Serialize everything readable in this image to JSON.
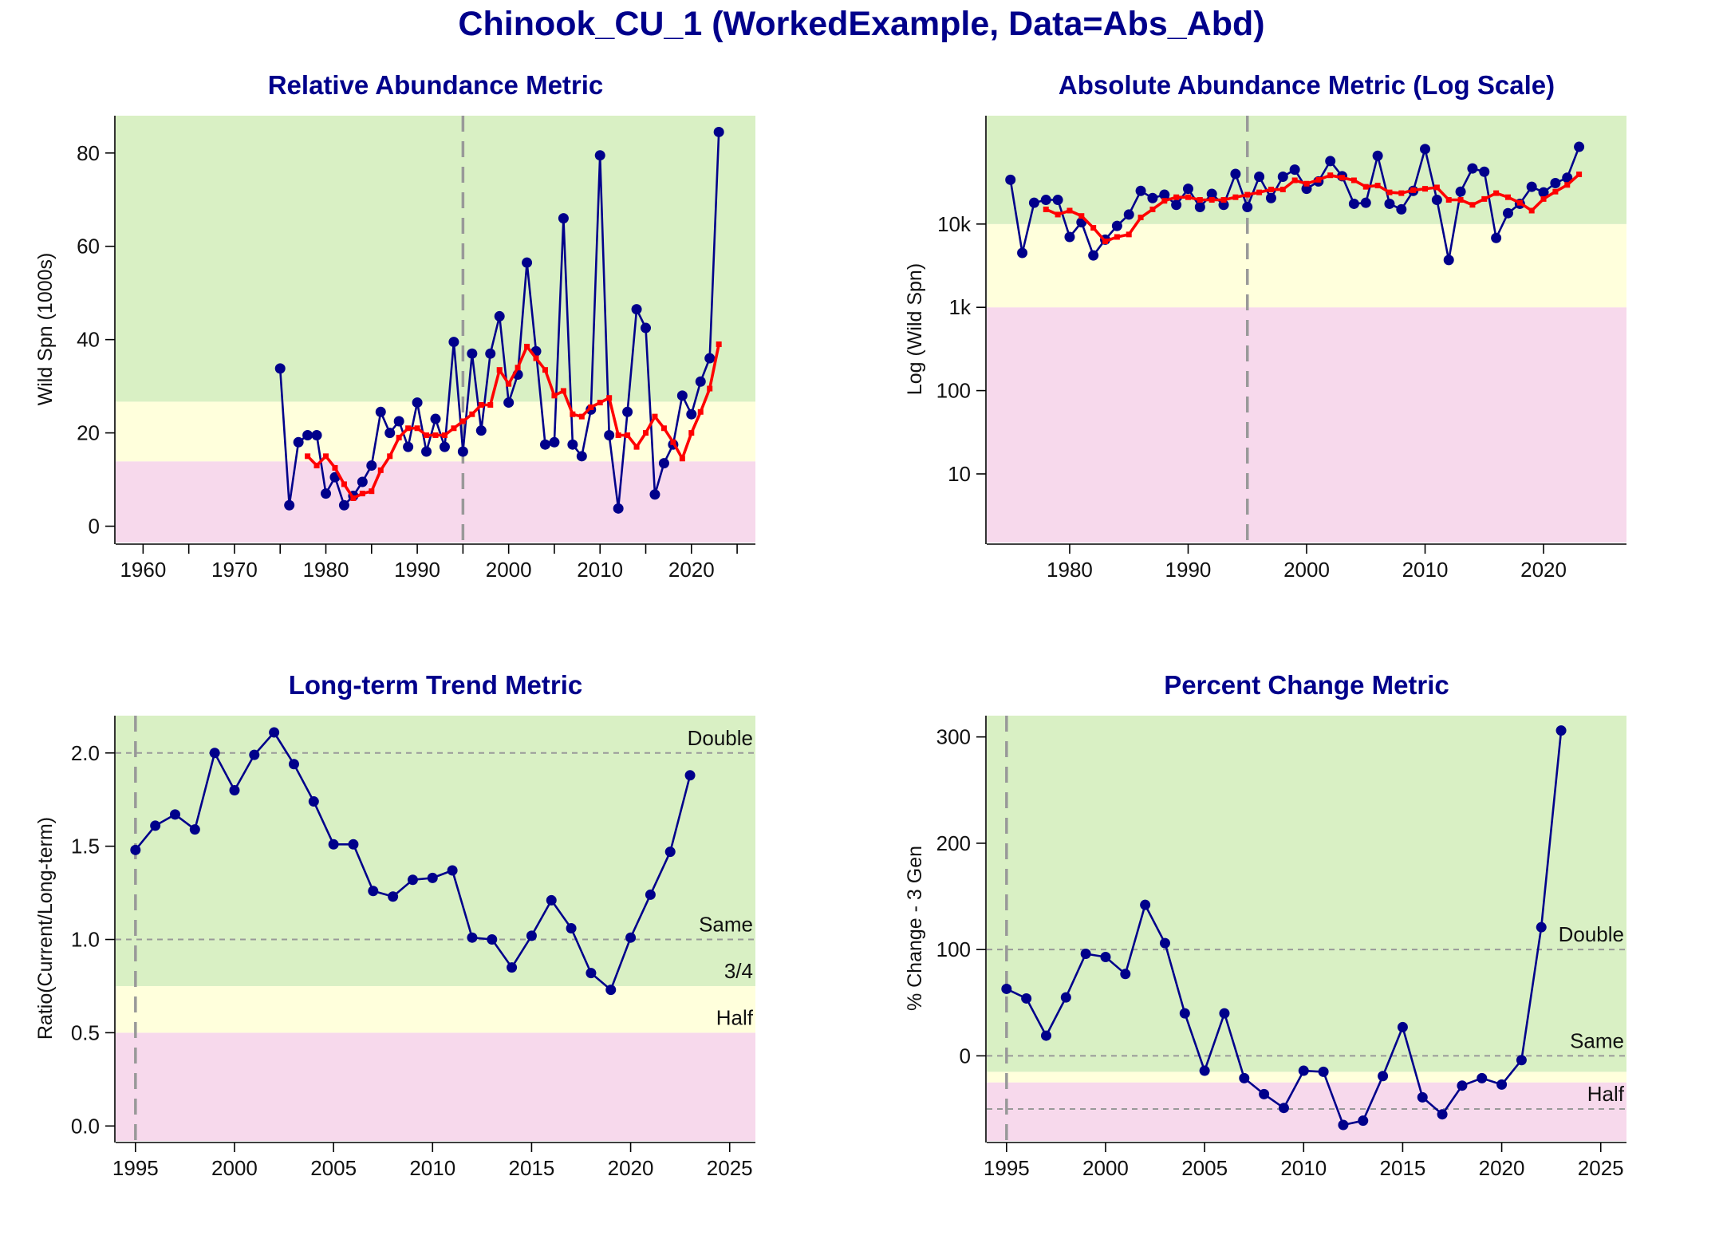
{
  "title": "Chinook_CU_1 (WorkedExample, Data=Abs_Abd)",
  "colors": {
    "green_zone": "#D9F0C4",
    "amber_zone": "#FFFFDC",
    "red_zone": "#F7D9EC",
    "series_line": "#00008B",
    "moving_avg": "#FF0000",
    "reference_line": "#999999",
    "title": "#00008B"
  },
  "chart_data": [
    {
      "id": "relative-abundance",
      "type": "line",
      "title": "Relative Abundance Metric",
      "ylabel": "Wild Spn (1000s)",
      "xlabel": "",
      "xlim": [
        1957,
        2027
      ],
      "ylim": [
        -3.5,
        88
      ],
      "xticks": [
        1960,
        1970,
        1980,
        1990,
        2000,
        2010,
        2020
      ],
      "xticks_minor": [
        1965,
        1975,
        1985,
        1995,
        2005,
        2015,
        2025
      ],
      "yticks": [
        0,
        20,
        40,
        60,
        80
      ],
      "ytick_labels": [
        "0",
        "20",
        "40",
        "60",
        "80"
      ],
      "zones": [
        {
          "name": "red",
          "from": -3.5,
          "to": 13.9
        },
        {
          "name": "amber",
          "from": 13.9,
          "to": 26.7
        },
        {
          "name": "green",
          "from": 26.7,
          "to": 88
        }
      ],
      "vline": 1995,
      "series": [
        {
          "x": [
            1975,
            1976,
            1977,
            1978,
            1979,
            1980,
            1981,
            1982,
            1983,
            1984,
            1985,
            1986,
            1987,
            1988,
            1989,
            1990,
            1991,
            1992,
            1993,
            1994,
            1995,
            1996,
            1997,
            1998,
            1999,
            2000,
            2001,
            2002,
            2003,
            2004,
            2005,
            2006,
            2007,
            2008,
            2009,
            2010,
            2011,
            2012,
            2013,
            2014,
            2015,
            2016,
            2017,
            2018,
            2019,
            2020,
            2021,
            2022,
            2023
          ],
          "values": [
            33.8,
            4.5,
            18,
            19.5,
            19.5,
            7,
            10.5,
            4.5,
            6.5,
            9.5,
            13,
            24.5,
            20,
            22.5,
            17,
            26.5,
            16,
            23,
            17,
            39.5,
            16,
            37,
            20.5,
            37,
            45,
            26.5,
            32.5,
            56.5,
            37.5,
            17.5,
            18,
            66,
            17.5,
            15,
            25,
            79.5,
            19.5,
            3.8,
            24.5,
            46.5,
            42.5,
            6.8,
            13.5,
            17.5,
            28,
            24,
            31,
            36,
            84.5
          ]
        },
        {
          "name_hidden": "moving average",
          "x": [
            1978,
            1979,
            1980,
            1981,
            1982,
            1983,
            1984,
            1985,
            1986,
            1987,
            1988,
            1989,
            1990,
            1991,
            1992,
            1993,
            1994,
            1995,
            1996,
            1997,
            1998,
            1999,
            2000,
            2001,
            2002,
            2003,
            2004,
            2005,
            2006,
            2007,
            2008,
            2009,
            2010,
            2011,
            2012,
            2013,
            2014,
            2015,
            2016,
            2017,
            2018,
            2019,
            2020,
            2021,
            2022,
            2023
          ],
          "values": [
            15,
            13,
            15,
            12.5,
            9,
            6,
            7,
            7.5,
            12,
            15,
            19,
            21,
            21,
            19.5,
            19.5,
            19.5,
            21,
            22.5,
            24,
            26,
            26,
            33.5,
            30.5,
            34,
            38.5,
            36,
            33.5,
            28,
            29,
            24,
            23.5,
            25.5,
            26.5,
            27.5,
            19.5,
            19.5,
            17,
            20,
            23.5,
            21,
            18,
            14.5,
            20,
            24.5,
            29.5,
            39
          ]
        }
      ]
    },
    {
      "id": "absolute-abundance",
      "type": "line",
      "title": "Absolute Abundance Metric (Log Scale)",
      "ylabel": "Log (Wild Spn)",
      "xlabel": "",
      "log_scale": true,
      "xlim": [
        1973,
        2027
      ],
      "ylim": [
        1.5,
        200000
      ],
      "xticks": [
        1980,
        1990,
        2000,
        2010,
        2020
      ],
      "yticks": [
        10,
        100,
        1000,
        10000
      ],
      "ytick_labels": [
        "10",
        "100",
        "1k",
        "10k"
      ],
      "zones": [
        {
          "name": "red",
          "from": 1.5,
          "to": 1000
        },
        {
          "name": "amber",
          "from": 1000,
          "to": 10000
        },
        {
          "name": "green",
          "from": 10000,
          "to": 200000
        }
      ],
      "vline": 1995,
      "series": [
        {
          "x": [
            1975,
            1976,
            1977,
            1978,
            1979,
            1980,
            1981,
            1982,
            1983,
            1984,
            1985,
            1986,
            1987,
            1988,
            1989,
            1990,
            1991,
            1992,
            1993,
            1994,
            1995,
            1996,
            1997,
            1998,
            1999,
            2000,
            2001,
            2002,
            2003,
            2004,
            2005,
            2006,
            2007,
            2008,
            2009,
            2010,
            2011,
            2012,
            2013,
            2014,
            2015,
            2016,
            2017,
            2018,
            2019,
            2020,
            2021,
            2022,
            2023
          ],
          "values": [
            34000,
            4500,
            18000,
            19500,
            19500,
            7000,
            10500,
            4200,
            6500,
            9500,
            13000,
            25000,
            20500,
            22500,
            17000,
            26500,
            16000,
            23000,
            17000,
            40000,
            16000,
            37000,
            20500,
            37000,
            45000,
            26500,
            32500,
            57000,
            37500,
            17500,
            18000,
            66000,
            17500,
            15000,
            25000,
            79500,
            19500,
            3700,
            24500,
            46500,
            42500,
            6800,
            13500,
            17500,
            28000,
            24000,
            31000,
            36000,
            84500
          ]
        },
        {
          "name_hidden": "moving average",
          "x": [
            1978,
            1979,
            1980,
            1981,
            1982,
            1983,
            1984,
            1985,
            1986,
            1987,
            1988,
            1989,
            1990,
            1991,
            1992,
            1993,
            1994,
            1995,
            1996,
            1997,
            1998,
            1999,
            2000,
            2001,
            2002,
            2003,
            2004,
            2005,
            2006,
            2007,
            2008,
            2009,
            2010,
            2011,
            2012,
            2013,
            2014,
            2015,
            2016,
            2017,
            2018,
            2019,
            2020,
            2021,
            2022,
            2023
          ],
          "values": [
            15000,
            13000,
            14500,
            12500,
            9000,
            6200,
            7000,
            7500,
            12000,
            15000,
            19000,
            21000,
            21000,
            19500,
            19500,
            19500,
            21000,
            22500,
            24000,
            26000,
            26000,
            33500,
            30500,
            34000,
            38500,
            36000,
            33500,
            28000,
            29000,
            24000,
            23500,
            25500,
            26500,
            27500,
            19500,
            19500,
            17000,
            20000,
            23500,
            21000,
            18000,
            14500,
            20000,
            24500,
            29500,
            39500
          ]
        }
      ]
    },
    {
      "id": "long-term-trend",
      "type": "line",
      "title": "Long-term Trend Metric",
      "ylabel": "Ratio(Current/Long-term)",
      "xlabel": "",
      "xlim": [
        1994,
        2026.3
      ],
      "ylim": [
        -0.08,
        2.2
      ],
      "xticks": [
        1995,
        2000,
        2005,
        2010,
        2015,
        2020,
        2025
      ],
      "yticks": [
        0,
        0.5,
        1,
        1.5,
        2
      ],
      "ytick_labels": [
        "0.0",
        "0.5",
        "1.0",
        "1.5",
        "2.0"
      ],
      "zones": [
        {
          "name": "red",
          "from": -0.08,
          "to": 0.5
        },
        {
          "name": "amber",
          "from": 0.5,
          "to": 0.75
        },
        {
          "name": "green",
          "from": 0.75,
          "to": 2.2
        }
      ],
      "vline": 1995,
      "hlines": [
        {
          "y": 2,
          "label": "Double",
          "dashed": true
        },
        {
          "y": 1,
          "label": "Same",
          "dashed": true
        },
        {
          "y": 0.75,
          "label": "3/4",
          "dashed": false
        },
        {
          "y": 0.5,
          "label": "Half",
          "dashed": false
        }
      ],
      "series": [
        {
          "x": [
            1995,
            1996,
            1997,
            1998,
            1999,
            2000,
            2001,
            2002,
            2003,
            2004,
            2005,
            2006,
            2007,
            2008,
            2009,
            2010,
            2011,
            2012,
            2013,
            2014,
            2015,
            2016,
            2017,
            2018,
            2019,
            2020,
            2021,
            2022,
            2023
          ],
          "values": [
            1.48,
            1.61,
            1.67,
            1.59,
            2.0,
            1.8,
            1.99,
            2.11,
            1.94,
            1.74,
            1.51,
            1.51,
            1.26,
            1.23,
            1.32,
            1.33,
            1.37,
            1.01,
            1.0,
            0.85,
            1.02,
            1.21,
            1.06,
            0.82,
            0.73,
            1.01,
            1.24,
            1.47,
            1.88
          ]
        }
      ]
    },
    {
      "id": "percent-change",
      "type": "line",
      "title": "Percent Change Metric",
      "ylabel": "% Change - 3 Gen",
      "xlabel": "",
      "xlim": [
        1994,
        2026.3
      ],
      "ylim": [
        -80,
        320
      ],
      "xticks": [
        1995,
        2000,
        2005,
        2010,
        2015,
        2020,
        2025
      ],
      "yticks": [
        0,
        100,
        200,
        300
      ],
      "ytick_labels": [
        "0",
        "100",
        "200",
        "300"
      ],
      "zones": [
        {
          "name": "red",
          "from": -80,
          "to": -25
        },
        {
          "name": "amber",
          "from": -25,
          "to": -15
        },
        {
          "name": "green",
          "from": -15,
          "to": 320
        }
      ],
      "vline": 1995,
      "hlines": [
        {
          "y": 100,
          "label": "Double",
          "dashed": true
        },
        {
          "y": 0,
          "label": "Same",
          "dashed": true
        },
        {
          "y": -50,
          "label": "Half",
          "dashed": true
        }
      ],
      "series": [
        {
          "x": [
            1995,
            1996,
            1997,
            1998,
            1999,
            2000,
            2001,
            2002,
            2003,
            2004,
            2005,
            2006,
            2007,
            2008,
            2009,
            2010,
            2011,
            2012,
            2013,
            2014,
            2015,
            2016,
            2017,
            2018,
            2019,
            2020,
            2021,
            2022,
            2023
          ],
          "values": [
            63,
            54,
            19,
            55,
            96,
            93,
            77,
            142,
            106,
            40,
            -14,
            40,
            -21,
            -36,
            -49,
            -14,
            -15,
            -65,
            -61,
            -19,
            27,
            -39,
            -55,
            -28,
            -21,
            -27,
            -4,
            121,
            306
          ]
        }
      ]
    }
  ]
}
